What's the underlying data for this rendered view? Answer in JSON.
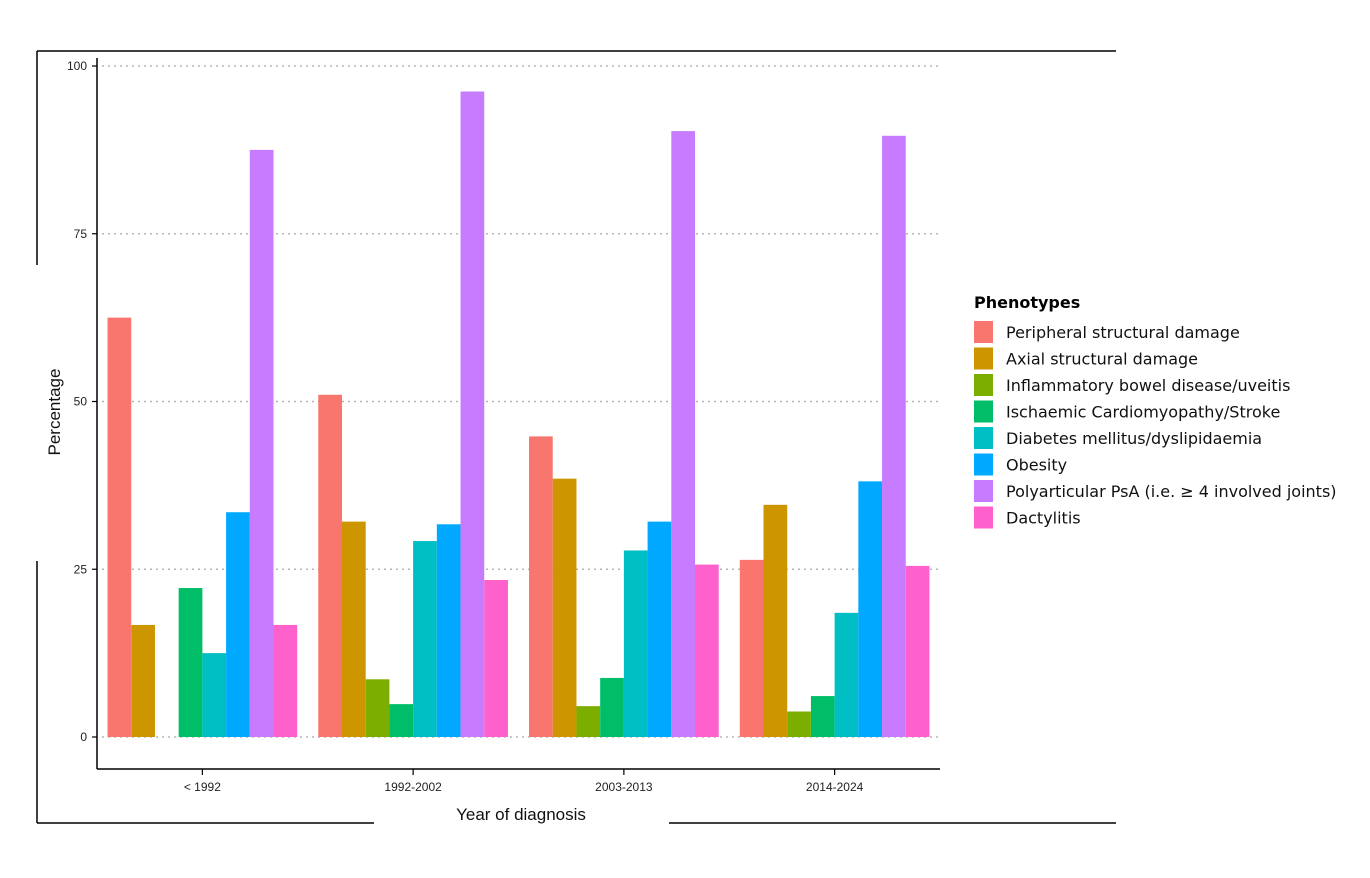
{
  "chart_data": {
    "type": "bar",
    "title": "",
    "xlabel": "Year of diagnosis",
    "ylabel": "Percentage",
    "ylim": [
      0,
      100
    ],
    "yticks": [
      0,
      25,
      50,
      75,
      100
    ],
    "grid": "horizontal dotted",
    "legend_position": "right",
    "legend_title": "Phenotypes",
    "categories": [
      "< 1992",
      "1992-2002",
      "2003-2013",
      "2014-2024"
    ],
    "series": [
      {
        "name": "Peripheral structural damage",
        "color": "#F8766D",
        "values": [
          62.5,
          51.0,
          44.8,
          26.4
        ]
      },
      {
        "name": "Axial structural damage",
        "color": "#CD9600",
        "values": [
          16.7,
          32.1,
          38.5,
          34.6
        ]
      },
      {
        "name": "Inflammatory bowel disease/uveitis",
        "color": "#7CAE00",
        "values": [
          0,
          8.6,
          4.6,
          3.8
        ]
      },
      {
        "name": "Ischaemic Cardiomyopathy/Stroke",
        "color": "#00BE67",
        "values": [
          22.2,
          4.9,
          8.8,
          6.1
        ]
      },
      {
        "name": "Diabetes mellitus/dyslipidaemia",
        "color": "#00BFC4",
        "values": [
          12.5,
          29.2,
          27.8,
          18.5
        ]
      },
      {
        "name": "Obesity",
        "color": "#00A9FF",
        "values": [
          33.5,
          31.7,
          32.1,
          38.1
        ]
      },
      {
        "name": "Polyarticular PsA (i.e. ≥ 4 involved joints)",
        "color": "#C77CFF",
        "values": [
          87.5,
          96.2,
          90.3,
          89.6
        ]
      },
      {
        "name": "Dactylitis",
        "color": "#FF61CC",
        "values": [
          16.7,
          23.4,
          25.7,
          25.5
        ]
      }
    ]
  }
}
